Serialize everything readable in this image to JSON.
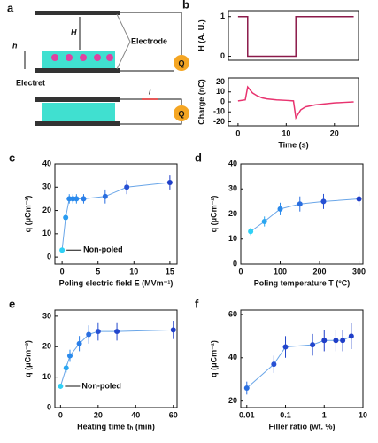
{
  "diagram": {
    "panel_label": "a",
    "labels": {
      "H": "H",
      "h": "h",
      "electrode": "Electrode",
      "electret": "Electret",
      "q_top": "Q",
      "q_bottom": "Q",
      "current": "i"
    }
  },
  "chart_data": [
    {
      "type": "line",
      "panel_label": "b",
      "ylabel": "H (A. U.)",
      "xlim": [
        -2,
        25
      ],
      "ylim": [
        -0.1,
        1.15
      ],
      "yticks": [
        0,
        1
      ],
      "x": [
        0,
        2,
        2,
        12,
        12,
        24
      ],
      "values": [
        1,
        1,
        0,
        0,
        1,
        1
      ],
      "color": "#8b1a4a"
    },
    {
      "type": "line",
      "xlabel": "Time (s)",
      "ylabel": "Charge (nC)",
      "xlim": [
        -2,
        25
      ],
      "ylim": [
        -24,
        24
      ],
      "xticks": [
        0,
        10,
        20
      ],
      "yticks": [
        -20,
        -10,
        0,
        10,
        20
      ],
      "x": [
        0,
        1.5,
        2,
        2.5,
        3,
        4,
        5,
        6,
        8,
        10,
        11.5,
        12,
        12.5,
        13,
        14,
        16,
        18,
        20,
        22,
        24
      ],
      "values": [
        1,
        2,
        15,
        12,
        9,
        6,
        4,
        3,
        2,
        1.5,
        1,
        -16,
        -12,
        -8,
        -5,
        -3,
        -2,
        -1,
        -0.5,
        0
      ],
      "color": "#e8336f"
    },
    {
      "type": "scatter",
      "panel_label": "c",
      "xlabel": "Poling electric field E (MVm⁻¹)",
      "ylabel": "q (μCm⁻²)",
      "xlim": [
        -1,
        16
      ],
      "ylim": [
        -3,
        40
      ],
      "xticks": [
        0,
        5,
        10,
        15
      ],
      "yticks": [
        0,
        10,
        20,
        30,
        40
      ],
      "x": [
        0,
        0.5,
        1,
        1.5,
        2,
        3,
        6,
        9,
        15
      ],
      "values": [
        3,
        17,
        25,
        25,
        25,
        25,
        26,
        30,
        32
      ],
      "errors": [
        0,
        1.5,
        2,
        2,
        2,
        2,
        3,
        3,
        3
      ],
      "colors": [
        "#2fd0f5",
        "#2a9cf0",
        "#2a8aec",
        "#2a8aec",
        "#2a8aec",
        "#2a7ee8",
        "#2a6ee0",
        "#2650d4",
        "#1f3ec8"
      ],
      "line_color": "#6aa6e8",
      "annotation": "Non-poled"
    },
    {
      "type": "scatter",
      "panel_label": "d",
      "xlabel": "Poling temperature T (°C)",
      "ylabel": "q (μCm⁻²)",
      "xlim": [
        0,
        310
      ],
      "ylim": [
        0,
        40
      ],
      "xticks": [
        0,
        100,
        200,
        300
      ],
      "yticks": [
        0,
        10,
        20,
        30,
        40
      ],
      "x": [
        25,
        60,
        100,
        150,
        210,
        300
      ],
      "values": [
        13,
        17,
        22,
        24,
        25,
        26
      ],
      "errors": [
        1.5,
        2,
        2.5,
        3,
        3,
        3
      ],
      "colors": [
        "#2fd0f5",
        "#2aa6f0",
        "#2a8aec",
        "#2a6ee0",
        "#2650d4",
        "#1f3ec8"
      ],
      "line_color": "#6aa6e8"
    },
    {
      "type": "scatter",
      "panel_label": "e",
      "xlabel": "Heating time tₕ (min)",
      "ylabel": "q (μCm⁻²)",
      "xlim": [
        -3,
        62
      ],
      "ylim": [
        0,
        32
      ],
      "xticks": [
        0,
        20,
        40,
        60
      ],
      "yticks": [
        0,
        10,
        20,
        30
      ],
      "x": [
        0,
        3,
        5,
        10,
        15,
        20,
        30,
        60
      ],
      "values": [
        7,
        13,
        17,
        21,
        24,
        25,
        25,
        25.5
      ],
      "errors": [
        0,
        1.5,
        2,
        2.5,
        3,
        3,
        3,
        3
      ],
      "colors": [
        "#2fd0f5",
        "#2aa6f0",
        "#2a8aec",
        "#2a7ee8",
        "#2a6ee0",
        "#2650d4",
        "#2246cc",
        "#1f3ec8"
      ],
      "line_color": "#6aa6e8",
      "annotation": "Non-poled"
    },
    {
      "type": "scatter",
      "panel_label": "f",
      "xlabel": "Filler ratio (wt. %)",
      "ylabel": "q (μCm⁻²)",
      "xscale": "log",
      "xlim": [
        0.007,
        10
      ],
      "ylim": [
        17,
        62
      ],
      "xticks": [
        0.01,
        0.1,
        1,
        10
      ],
      "yticks": [
        20,
        40,
        60
      ],
      "x": [
        0.01,
        0.05,
        0.1,
        0.5,
        1,
        2,
        3,
        5
      ],
      "values": [
        26,
        37,
        45,
        46,
        48,
        48,
        48,
        50
      ],
      "errors": [
        3,
        4,
        5,
        5,
        5,
        5,
        5,
        6
      ],
      "colors": [
        "#2a6ee0",
        "#2650d4",
        "#2246cc",
        "#2246cc",
        "#1f3ec8",
        "#1f3ec8",
        "#1f3ec8",
        "#1f3ec8"
      ],
      "line_color": "#6aa6e8"
    }
  ]
}
